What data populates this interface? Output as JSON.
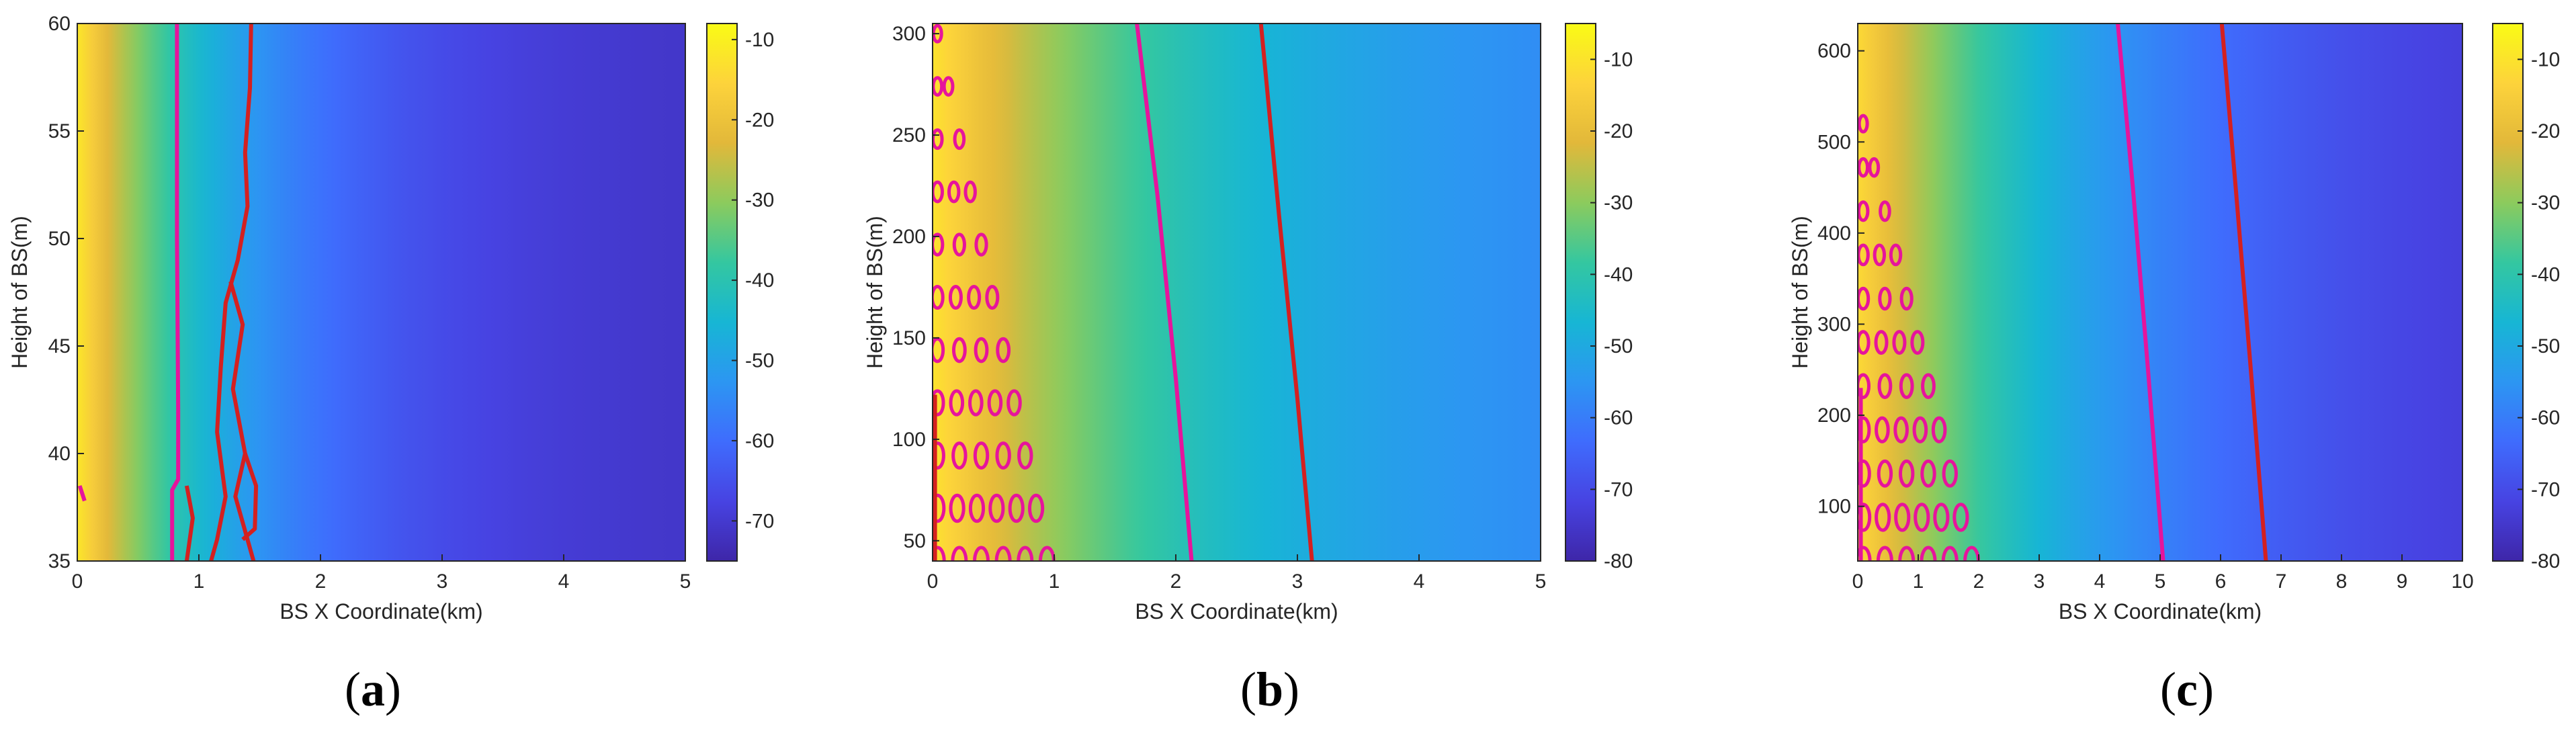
{
  "chart_data": [
    {
      "type": "heatmap",
      "caption": "a",
      "xlabel": "BS X Coordinate(km)",
      "ylabel": "Height of BS(m)",
      "xlim": [
        0,
        5
      ],
      "ylim": [
        35,
        60
      ],
      "xticks": [
        0,
        1,
        2,
        3,
        4,
        5
      ],
      "yticks": [
        35,
        40,
        45,
        50,
        55,
        60
      ],
      "colorbar": {
        "min": -75,
        "max": -8,
        "ticks": [
          -70,
          -60,
          -50,
          -40,
          -30,
          -20,
          -10
        ]
      },
      "colormap": [
        "#3e26a8",
        "#4743e2",
        "#3f6cfd",
        "#2c96f2",
        "#17b6d4",
        "#34c7a0",
        "#8ccb5d",
        "#e2b83a",
        "#fdd33b",
        "#f9fb15"
      ],
      "field": {
        "near_value": -12,
        "far_value": -72,
        "decay_km": 1.3
      },
      "contours": [
        {
          "color": "#e6149c",
          "points": [
            [
              0.82,
              60
            ],
            [
              0.82,
              50
            ],
            [
              0.83,
              42
            ],
            [
              0.83,
              38.8
            ],
            [
              0.78,
              38.3
            ],
            [
              0.78,
              35
            ]
          ]
        },
        {
          "color": "#e6149c",
          "points": [
            [
              0.02,
              38.5
            ],
            [
              0.06,
              37.8
            ]
          ]
        },
        {
          "color": "#d42020",
          "points": [
            [
              1.43,
              60
            ],
            [
              1.42,
              57
            ],
            [
              1.38,
              54
            ],
            [
              1.4,
              51.5
            ],
            [
              1.32,
              49
            ],
            [
              1.22,
              47
            ],
            [
              1.18,
              44
            ],
            [
              1.15,
              41
            ],
            [
              1.22,
              38
            ],
            [
              1.15,
              36
            ],
            [
              1.1,
              35
            ]
          ]
        },
        {
          "color": "#d42020",
          "points": [
            [
              1.26,
              48
            ],
            [
              1.36,
              46
            ],
            [
              1.28,
              43
            ],
            [
              1.38,
              40
            ],
            [
              1.3,
              38
            ],
            [
              1.4,
              36
            ],
            [
              1.45,
              35
            ]
          ]
        },
        {
          "color": "#d42020",
          "points": [
            [
              1.38,
              40
            ],
            [
              1.47,
              38.5
            ],
            [
              1.46,
              36.5
            ],
            [
              1.36,
              36
            ]
          ]
        },
        {
          "color": "#d42020",
          "points": [
            [
              0.9,
              38.5
            ],
            [
              0.95,
              37
            ],
            [
              0.9,
              35
            ]
          ]
        }
      ]
    },
    {
      "type": "heatmap",
      "caption": "b",
      "xlabel": "BS X Coordinate(km)",
      "ylabel": "Height of BS(m)",
      "xlim": [
        0,
        5
      ],
      "ylim": [
        40,
        305
      ],
      "xticks": [
        0,
        1,
        2,
        3,
        4,
        5
      ],
      "yticks": [
        50,
        100,
        150,
        200,
        250,
        300
      ],
      "colorbar": {
        "min": -80,
        "max": -5,
        "ticks": [
          -80,
          -70,
          -60,
          -50,
          -40,
          -30,
          -20,
          -10
        ]
      },
      "colormap": [
        "#3e26a8",
        "#4743e2",
        "#3f6cfd",
        "#2c96f2",
        "#17b6d4",
        "#34c7a0",
        "#8ccb5d",
        "#e2b83a",
        "#fdd33b",
        "#f9fb15"
      ],
      "field": {
        "near_value": -10,
        "far_value": -62,
        "decay_km": 2.2
      },
      "contours": [
        {
          "color": "#e6149c",
          "points": [
            [
              1.68,
              305
            ],
            [
              1.85,
              220
            ],
            [
              2.0,
              130
            ],
            [
              2.13,
              40
            ]
          ]
        },
        {
          "color": "#d42020",
          "points": [
            [
              2.7,
              305
            ],
            [
              2.85,
              210
            ],
            [
              3.0,
              120
            ],
            [
              3.12,
              40
            ]
          ]
        },
        {
          "color": "#d42020",
          "points": [
            [
              0.02,
              122
            ],
            [
              0.02,
              40
            ]
          ]
        }
      ],
      "blobs": {
        "color": "#e6149c",
        "apex_x": 0.02,
        "apex_y": 300,
        "base_x": 1.0,
        "base_y": 40
      }
    },
    {
      "type": "heatmap",
      "caption": "c",
      "xlabel": "BS X Coordinate(km)",
      "ylabel": "Height of BS(m)",
      "xlim": [
        0,
        10
      ],
      "ylim": [
        40,
        630
      ],
      "xticks": [
        0,
        1,
        2,
        3,
        4,
        5,
        6,
        7,
        8,
        9,
        10
      ],
      "yticks": [
        100,
        200,
        300,
        400,
        500,
        600
      ],
      "colorbar": {
        "min": -80,
        "max": -5,
        "ticks": [
          -80,
          -70,
          -60,
          -50,
          -40,
          -30,
          -20,
          -10
        ]
      },
      "colormap": [
        "#3e26a8",
        "#4743e2",
        "#3f6cfd",
        "#2c96f2",
        "#17b6d4",
        "#34c7a0",
        "#8ccb5d",
        "#e2b83a",
        "#fdd33b",
        "#f9fb15"
      ],
      "field": {
        "near_value": -12,
        "far_value": -78,
        "decay_km": 4.0
      },
      "contours": [
        {
          "color": "#e6149c",
          "points": [
            [
              4.3,
              630
            ],
            [
              4.55,
              450
            ],
            [
              4.8,
              250
            ],
            [
              5.05,
              40
            ]
          ]
        },
        {
          "color": "#d42020",
          "points": [
            [
              6.02,
              630
            ],
            [
              6.25,
              450
            ],
            [
              6.5,
              250
            ],
            [
              6.75,
              40
            ]
          ]
        },
        {
          "color": "#e6149c",
          "points": [
            [
              0.05,
              230
            ],
            [
              0.05,
              40
            ]
          ]
        }
      ],
      "blobs": {
        "color": "#e6149c",
        "apex_x": 0.05,
        "apex_y": 520,
        "base_x": 2.0,
        "base_y": 40
      }
    }
  ]
}
